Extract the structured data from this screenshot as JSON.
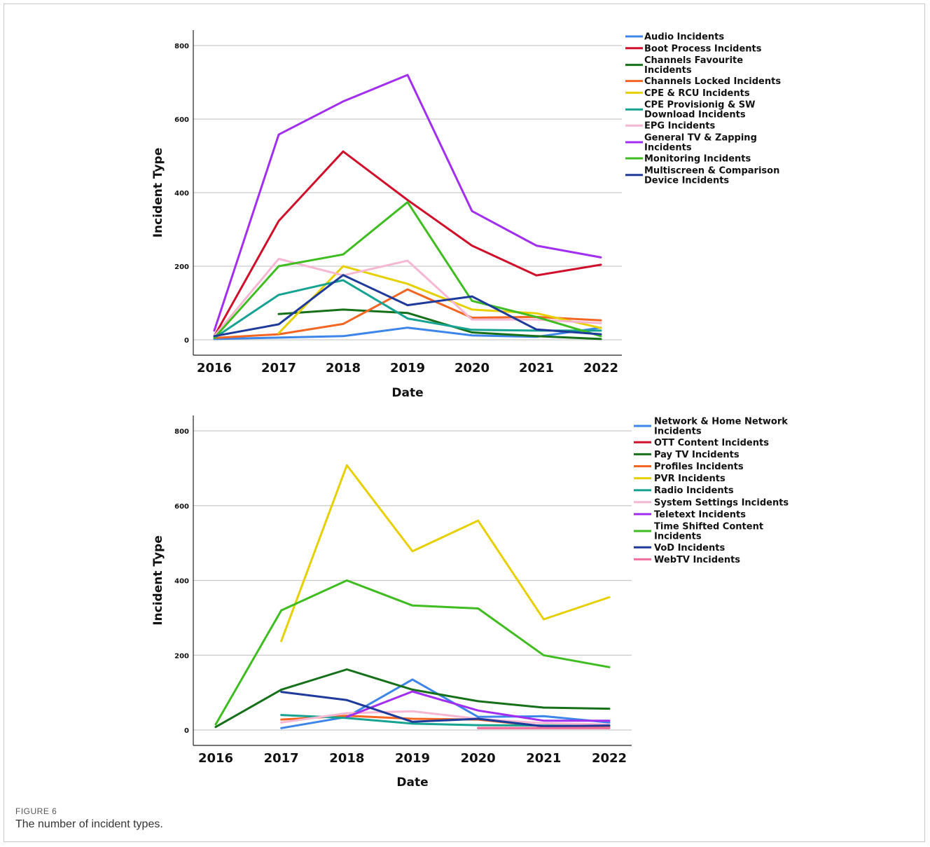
{
  "figure": {
    "label": "FIGURE 6",
    "caption": "The number of incident types."
  },
  "chart_data": [
    {
      "type": "line",
      "xlabel": "Date",
      "ylabel": "Incident Type",
      "ylim": [
        0,
        800
      ],
      "yticks": [
        0,
        200,
        400,
        600,
        800
      ],
      "x": [
        2016,
        2017,
        2018,
        2019,
        2020,
        2021,
        2022
      ],
      "grid": "horizontal",
      "legend_position": "top-right",
      "series": [
        {
          "name": "Audio Incidents",
          "color": "#3d85e8",
          "values": [
            2,
            6,
            10,
            33,
            12,
            8,
            33
          ]
        },
        {
          "name": "Boot Process Incidents",
          "color": "#d0102a",
          "values": [
            10,
            323,
            512,
            380,
            256,
            175,
            204
          ]
        },
        {
          "name": "Channels Favourite Incidents",
          "color": "#16701a",
          "values": [
            null,
            70,
            82,
            73,
            20,
            10,
            2
          ]
        },
        {
          "name": "Channels Locked Incidents",
          "color": "#f26522",
          "values": [
            5,
            15,
            43,
            137,
            60,
            62,
            53
          ]
        },
        {
          "name": "CPE & RCU Incidents",
          "color": "#e6d000",
          "values": [
            null,
            18,
            200,
            152,
            82,
            72,
            32
          ]
        },
        {
          "name": "CPE Provisionig & SW Download Incidents",
          "color": "#16a392",
          "values": [
            5,
            122,
            162,
            58,
            27,
            25,
            25
          ]
        },
        {
          "name": "EPG Incidents",
          "color": "#f7b7d2",
          "values": [
            10,
            220,
            175,
            215,
            55,
            55,
            45
          ]
        },
        {
          "name": "General TV & Zapping Incidents",
          "color": "#a22ef0",
          "values": [
            25,
            558,
            648,
            720,
            350,
            256,
            224
          ]
        },
        {
          "name": "Monitoring Incidents",
          "color": "#3fbd20",
          "values": [
            5,
            200,
            232,
            374,
            106,
            62,
            10
          ]
        },
        {
          "name": "Multiscreen & Comparison Device Incidents",
          "color": "#1e3a9a",
          "values": [
            10,
            42,
            176,
            94,
            118,
            28,
            15
          ]
        }
      ]
    },
    {
      "type": "line",
      "xlabel": "Date",
      "ylabel": "Incident Type",
      "ylim": [
        0,
        800
      ],
      "yticks": [
        0,
        200,
        400,
        600,
        800
      ],
      "x": [
        2016,
        2017,
        2018,
        2019,
        2020,
        2021,
        2022
      ],
      "grid": "horizontal",
      "legend_position": "top-right",
      "series": [
        {
          "name": "Network & Home Network Incidents",
          "color": "#3d85e8",
          "values": [
            null,
            5,
            35,
            135,
            35,
            37,
            20
          ]
        },
        {
          "name": "OTT Content Incidents",
          "color": "#d0102a",
          "values": [
            null,
            null,
            null,
            null,
            5,
            5,
            5
          ]
        },
        {
          "name": "Pay TV Incidents",
          "color": "#16701a",
          "values": [
            8,
            108,
            162,
            108,
            77,
            60,
            57
          ]
        },
        {
          "name": "Profiles Incidents",
          "color": "#f26522",
          "values": [
            null,
            28,
            38,
            30,
            28,
            10,
            10
          ]
        },
        {
          "name": "PVR Incidents",
          "color": "#e6d000",
          "values": [
            null,
            238,
            708,
            478,
            560,
            296,
            355
          ]
        },
        {
          "name": "Radio Incidents",
          "color": "#16a392",
          "values": [
            null,
            40,
            32,
            17,
            13,
            12,
            12
          ]
        },
        {
          "name": "System Settings Incidents",
          "color": "#f7b7d2",
          "values": [
            null,
            20,
            45,
            50,
            30,
            18,
            15
          ]
        },
        {
          "name": "Teletext Incidents",
          "color": "#a22ef0",
          "values": [
            null,
            null,
            35,
            103,
            52,
            25,
            25
          ]
        },
        {
          "name": "Time Shifted Content Incidents",
          "color": "#3fbd20",
          "values": [
            15,
            320,
            400,
            333,
            325,
            200,
            168
          ]
        },
        {
          "name": "VoD Incidents",
          "color": "#1e3a9a",
          "values": [
            null,
            102,
            80,
            22,
            30,
            10,
            12
          ]
        },
        {
          "name": "WebTV Incidents",
          "color": "#ee6fa0",
          "values": [
            null,
            null,
            null,
            null,
            5,
            5,
            5
          ]
        }
      ]
    }
  ]
}
